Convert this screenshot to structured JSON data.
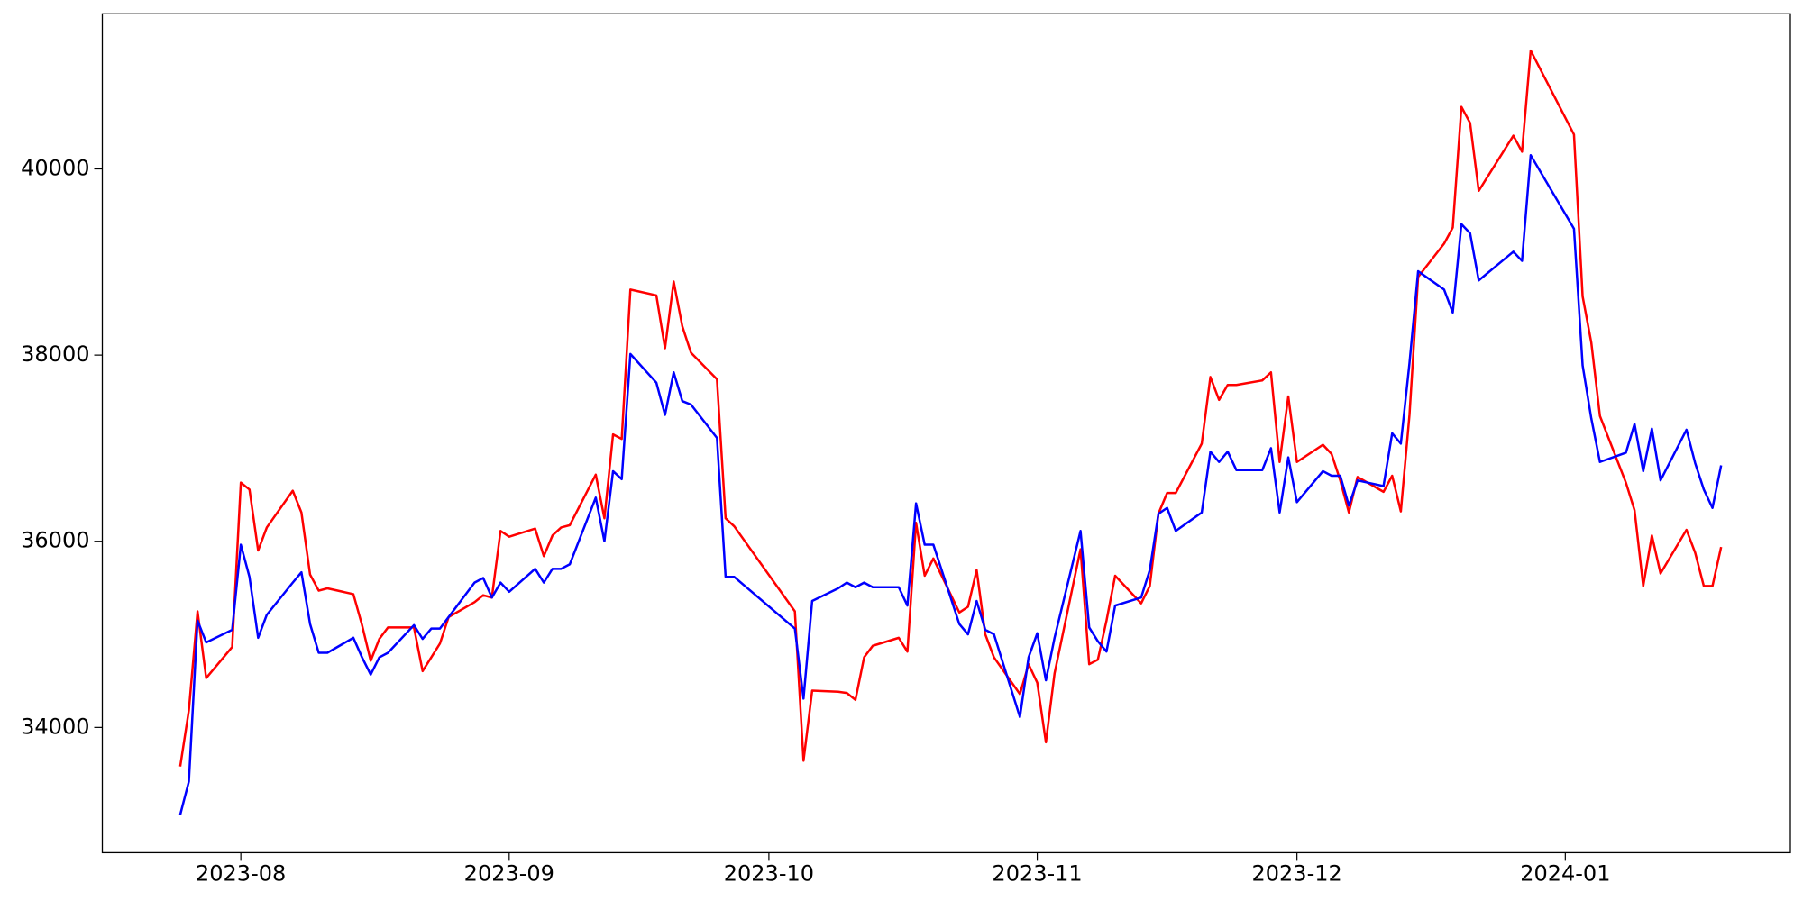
{
  "chart_data": {
    "type": "line",
    "x": [
      "2023-07-25",
      "2023-07-26",
      "2023-07-27",
      "2023-07-28",
      "2023-07-31",
      "2023-08-01",
      "2023-08-02",
      "2023-08-03",
      "2023-08-04",
      "2023-08-07",
      "2023-08-08",
      "2023-08-09",
      "2023-08-10",
      "2023-08-11",
      "2023-08-14",
      "2023-08-15",
      "2023-08-16",
      "2023-08-17",
      "2023-08-18",
      "2023-08-21",
      "2023-08-22",
      "2023-08-23",
      "2023-08-24",
      "2023-08-25",
      "2023-08-28",
      "2023-08-29",
      "2023-08-30",
      "2023-08-31",
      "2023-09-01",
      "2023-09-04",
      "2023-09-05",
      "2023-09-06",
      "2023-09-07",
      "2023-09-08",
      "2023-09-11",
      "2023-09-12",
      "2023-09-13",
      "2023-09-14",
      "2023-09-15",
      "2023-09-18",
      "2023-09-19",
      "2023-09-20",
      "2023-09-21",
      "2023-09-22",
      "2023-09-25",
      "2023-09-26",
      "2023-09-27",
      "2023-10-04",
      "2023-10-05",
      "2023-10-06",
      "2023-10-09",
      "2023-10-10",
      "2023-10-11",
      "2023-10-12",
      "2023-10-13",
      "2023-10-16",
      "2023-10-17",
      "2023-10-18",
      "2023-10-19",
      "2023-10-20",
      "2023-10-23",
      "2023-10-24",
      "2023-10-25",
      "2023-10-26",
      "2023-10-27",
      "2023-10-30",
      "2023-10-31",
      "2023-11-01",
      "2023-11-02",
      "2023-11-03",
      "2023-11-06",
      "2023-11-07",
      "2023-11-08",
      "2023-11-09",
      "2023-11-10",
      "2023-11-13",
      "2023-11-14",
      "2023-11-15",
      "2023-11-16",
      "2023-11-17",
      "2023-11-20",
      "2023-11-21",
      "2023-11-22",
      "2023-11-23",
      "2023-11-24",
      "2023-11-27",
      "2023-11-28",
      "2023-11-29",
      "2023-11-30",
      "2023-12-01",
      "2023-12-04",
      "2023-12-05",
      "2023-12-06",
      "2023-12-07",
      "2023-12-08",
      "2023-12-11",
      "2023-12-12",
      "2023-12-13",
      "2023-12-14",
      "2023-12-15",
      "2023-12-18",
      "2023-12-19",
      "2023-12-20",
      "2023-12-21",
      "2023-12-22",
      "2023-12-26",
      "2023-12-27",
      "2023-12-28",
      "2024-01-02",
      "2024-01-03",
      "2024-01-04",
      "2024-01-05",
      "2024-01-08",
      "2024-01-09",
      "2024-01-10",
      "2024-01-11",
      "2024-01-12",
      "2024-01-15",
      "2024-01-16",
      "2024-01-17",
      "2024-01-18",
      "2024-01-19"
    ],
    "series": [
      {
        "color": "#ff0000",
        "values": [
          33580,
          34185,
          35247,
          34530,
          34864,
          36630,
          36556,
          35901,
          36148,
          36543,
          36309,
          35642,
          35469,
          35494,
          35432,
          35100,
          34716,
          34951,
          35074,
          35074,
          34605,
          34753,
          34901,
          35185,
          35346,
          35420,
          35395,
          36111,
          36049,
          36136,
          35840,
          36062,
          36148,
          36173,
          36716,
          36247,
          37148,
          37099,
          38704,
          38642,
          38074,
          38790,
          38309,
          38025,
          37741,
          36247,
          36160,
          35247,
          33642,
          34395,
          34383,
          34370,
          34296,
          34753,
          34877,
          34963,
          34815,
          36198,
          35630,
          35815,
          35235,
          35296,
          35691,
          35000,
          34753,
          34358,
          34679,
          34481,
          33840,
          34580,
          35914,
          34679,
          34728,
          35148,
          35630,
          35333,
          35519,
          36296,
          36519,
          36519,
          37049,
          37765,
          37519,
          37679,
          37679,
          37728,
          37815,
          36852,
          37556,
          36852,
          37037,
          36938,
          36654,
          36309,
          36691,
          36531,
          36704,
          36321,
          37358,
          38840,
          39198,
          39370,
          40667,
          40494,
          39765,
          40358,
          40185,
          41272,
          40370,
          38630,
          38136,
          37346,
          36630,
          36333,
          35519,
          36062,
          35654,
          36123,
          35877,
          35519,
          35519,
          35938
        ]
      },
      {
        "color": "#0000ff",
        "values": [
          33062,
          33420,
          35148,
          34913,
          35049,
          35963,
          35617,
          34963,
          35210,
          35556,
          35667,
          35111,
          34802,
          34802,
          34963,
          34753,
          34568,
          34753,
          34802,
          35099,
          34951,
          35062,
          35062,
          35185,
          35556,
          35605,
          35395,
          35556,
          35457,
          35704,
          35556,
          35704,
          35704,
          35753,
          36469,
          36000,
          36753,
          36667,
          38012,
          37704,
          37358,
          37815,
          37506,
          37469,
          37111,
          35617,
          35617,
          35062,
          34309,
          35358,
          35494,
          35556,
          35506,
          35556,
          35506,
          35506,
          35309,
          36407,
          35963,
          35963,
          35111,
          35000,
          35358,
          35049,
          35000,
          34111,
          34753,
          35012,
          34506,
          34963,
          36111,
          35074,
          34926,
          34815,
          35309,
          35395,
          35691,
          36296,
          36358,
          36111,
          36309,
          36963,
          36852,
          36963,
          36765,
          36765,
          37000,
          36309,
          36901,
          36420,
          36753,
          36704,
          36704,
          36383,
          36654,
          36593,
          37160,
          37049,
          37914,
          38901,
          38704,
          38457,
          39407,
          39309,
          38802,
          39111,
          39012,
          40148,
          39358,
          37889,
          37321,
          36852,
          36951,
          37259,
          36753,
          37210,
          36654,
          37198,
          36840,
          36556,
          36358,
          36815
        ]
      }
    ],
    "xlim": [
      "2023-07-16",
      "2024-01-27"
    ],
    "xticks": [
      "2023-08",
      "2023-09",
      "2023-10",
      "2023-11",
      "2023-12",
      "2024-01"
    ],
    "ylim": [
      32654,
      41667
    ],
    "yticks": [
      34000,
      36000,
      38000,
      40000
    ],
    "grid": false
  }
}
